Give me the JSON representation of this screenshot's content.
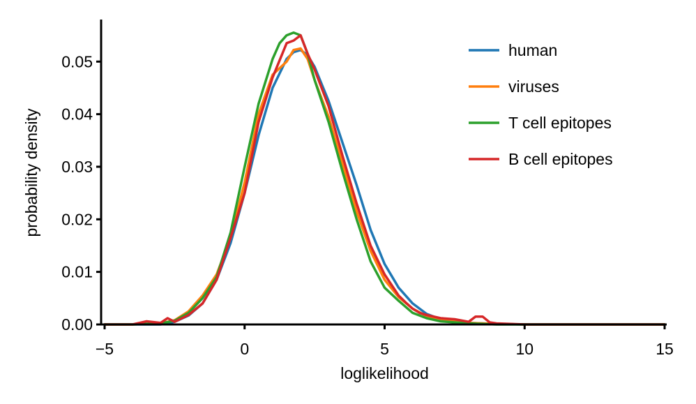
{
  "chart_data": {
    "type": "line",
    "title": "",
    "xlabel": "loglikelihood",
    "ylabel": "probability density",
    "xlim": [
      -5,
      15
    ],
    "ylim": [
      0,
      0.058
    ],
    "xticks": [
      -5,
      0,
      5,
      10,
      15
    ],
    "xtick_labels": [
      "−5",
      "0",
      "5",
      "10",
      "15"
    ],
    "yticks": [
      0,
      0.01,
      0.02,
      0.03,
      0.04,
      0.05
    ],
    "ytick_labels": [
      "0.00",
      "0.01",
      "0.02",
      "0.03",
      "0.04",
      "0.05"
    ],
    "grid": false,
    "legend_position": "top-right",
    "series": [
      {
        "name": "human",
        "color": "#1f77b4",
        "x": [
          -5,
          -4,
          -3,
          -2.5,
          -2,
          -1.5,
          -1,
          -0.5,
          0,
          0.5,
          1,
          1.5,
          1.75,
          2,
          2.25,
          2.5,
          3,
          3.5,
          4,
          4.5,
          5,
          5.5,
          6,
          6.5,
          7,
          8,
          9,
          10,
          12,
          15
        ],
        "y": [
          0,
          0,
          0,
          0.0005,
          0.0017,
          0.004,
          0.0085,
          0.0155,
          0.025,
          0.036,
          0.045,
          0.0505,
          0.0518,
          0.0522,
          0.0512,
          0.049,
          0.0425,
          0.0345,
          0.0265,
          0.018,
          0.0115,
          0.007,
          0.004,
          0.002,
          0.001,
          0.0003,
          0.0001,
          0,
          0,
          0
        ]
      },
      {
        "name": "viruses",
        "color": "#ff7f0e",
        "x": [
          -5,
          -4,
          -3,
          -2.5,
          -2,
          -1.5,
          -1,
          -0.5,
          0,
          0.5,
          1,
          1.5,
          1.75,
          2,
          2.25,
          2.5,
          3,
          3.5,
          4,
          4.5,
          5,
          5.5,
          6,
          6.5,
          7,
          8,
          9,
          10,
          12,
          15
        ],
        "y": [
          0,
          0,
          0.0002,
          0.0008,
          0.0025,
          0.0055,
          0.0095,
          0.0165,
          0.027,
          0.04,
          0.0475,
          0.05,
          0.0522,
          0.0525,
          0.0505,
          0.0465,
          0.0395,
          0.0305,
          0.0215,
          0.014,
          0.0085,
          0.0052,
          0.003,
          0.0016,
          0.0008,
          0.0003,
          0.0001,
          0,
          0,
          0
        ]
      },
      {
        "name": "T cell epitopes",
        "color": "#2ca02c",
        "x": [
          -5,
          -4,
          -3,
          -2.5,
          -2,
          -1.5,
          -1,
          -0.5,
          0,
          0.5,
          1,
          1.25,
          1.5,
          1.75,
          2,
          2.25,
          2.5,
          3,
          3.5,
          4,
          4.5,
          5,
          5.5,
          6,
          6.5,
          7,
          8,
          9,
          10,
          12,
          15
        ],
        "y": [
          0,
          0,
          0.0002,
          0.0007,
          0.0022,
          0.005,
          0.009,
          0.0175,
          0.03,
          0.042,
          0.0505,
          0.0535,
          0.055,
          0.0555,
          0.055,
          0.0515,
          0.0465,
          0.0385,
          0.029,
          0.02,
          0.012,
          0.007,
          0.0045,
          0.0022,
          0.0012,
          0.0006,
          0.0002,
          0,
          0,
          0,
          0
        ]
      },
      {
        "name": "B cell epitopes",
        "color": "#d62728",
        "x": [
          -5,
          -4,
          -3.5,
          -3,
          -2.75,
          -2.5,
          -2,
          -1.5,
          -1,
          -0.5,
          0,
          0.5,
          1,
          1.5,
          1.75,
          2,
          2.25,
          2.5,
          3,
          3.5,
          4,
          4.5,
          5,
          5.5,
          5.75,
          6,
          6.25,
          6.5,
          7,
          7.5,
          8,
          8.25,
          8.5,
          8.75,
          9,
          10,
          12,
          15
        ],
        "y": [
          0,
          0,
          0.0006,
          0.0003,
          0.0012,
          0.0005,
          0.0018,
          0.004,
          0.0085,
          0.0165,
          0.025,
          0.0385,
          0.047,
          0.0535,
          0.054,
          0.055,
          0.0515,
          0.0485,
          0.0415,
          0.032,
          0.023,
          0.015,
          0.0095,
          0.0055,
          0.0042,
          0.003,
          0.0022,
          0.0018,
          0.0012,
          0.001,
          0.0005,
          0.0015,
          0.0015,
          0.0004,
          0.0002,
          0,
          0,
          0
        ]
      }
    ]
  }
}
